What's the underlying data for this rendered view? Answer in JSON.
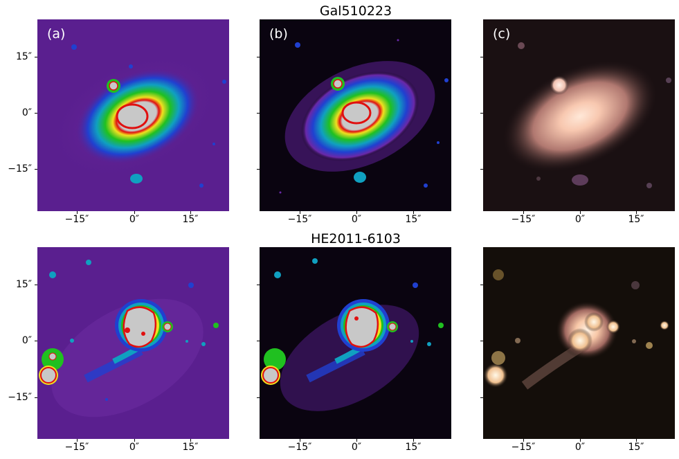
{
  "rows": [
    {
      "title": "Gal510223",
      "panels": [
        {
          "label": "(a)",
          "style": "false-color"
        },
        {
          "label": "(b)",
          "style": "false-color-dark"
        },
        {
          "label": "(c)",
          "style": "rgb"
        }
      ]
    },
    {
      "title": "HE2011-6103",
      "panels": [
        {
          "label": "",
          "style": "false-color"
        },
        {
          "label": "",
          "style": "false-color-dark"
        },
        {
          "label": "",
          "style": "rgb"
        }
      ]
    }
  ],
  "axes": {
    "x_ticks": [
      "−15″",
      "0″",
      "15″"
    ],
    "y_ticks": [
      "15″",
      "0″",
      "−15″"
    ]
  },
  "colors": {
    "background_purple": "#5a1f8f",
    "background_dark": "#0a0410",
    "rgb_background": "#1a1012",
    "core_gray": "#c8c8c8"
  }
}
